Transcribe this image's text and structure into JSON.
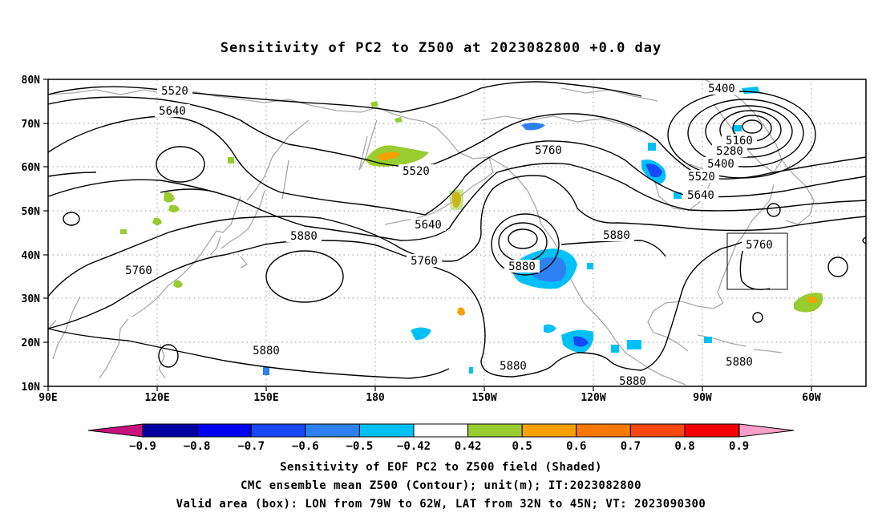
{
  "title": "Sensitivity of PC2 to Z500 at 2023082800 +0.0 day",
  "map": {
    "lat_labels": [
      "80N",
      "70N",
      "60N",
      "50N",
      "40N",
      "30N",
      "20N",
      "10N"
    ],
    "lon_labels": [
      "90E",
      "120E",
      "150E",
      "180",
      "150W",
      "120W",
      "90W",
      "60W"
    ],
    "contour_labels": [
      "5520",
      "5640",
      "5400",
      "5760",
      "5520",
      "5160",
      "5280",
      "5400",
      "5520",
      "5640",
      "5640",
      "5880",
      "5880",
      "5760",
      "5760",
      "5760",
      "5880",
      "5880",
      "5880",
      "5880",
      "5880"
    ],
    "valid_box": {
      "lon_w": "79W",
      "lon_e": "62W",
      "lat_s": "32N",
      "lat_n": "45N"
    }
  },
  "colorbar": {
    "levels": [
      "-0.9",
      "-0.8",
      "-0.7",
      "-0.6",
      "-0.5",
      "-0.42",
      "0.42",
      "0.5",
      "0.6",
      "0.7",
      "0.8",
      "0.9"
    ],
    "colors": [
      "#c8127e",
      "#0000a0",
      "#0000f0",
      "#1848f8",
      "#2c80f0",
      "#00c0f8",
      "#ffffff",
      "#98cc30",
      "#f8a000",
      "#f87800",
      "#f84810",
      "#f80000",
      "#f8a0c8"
    ]
  },
  "caption": {
    "line1": "Sensitivity of EOF PC2 to Z500 field (Shaded)",
    "line2": "CMC ensemble mean Z500 (Contour); unit(m); IT:2023082800",
    "line3": "Valid area (box): LON from 79W to 62W, LAT from 32N to 45N; VT: 2023090300"
  }
}
